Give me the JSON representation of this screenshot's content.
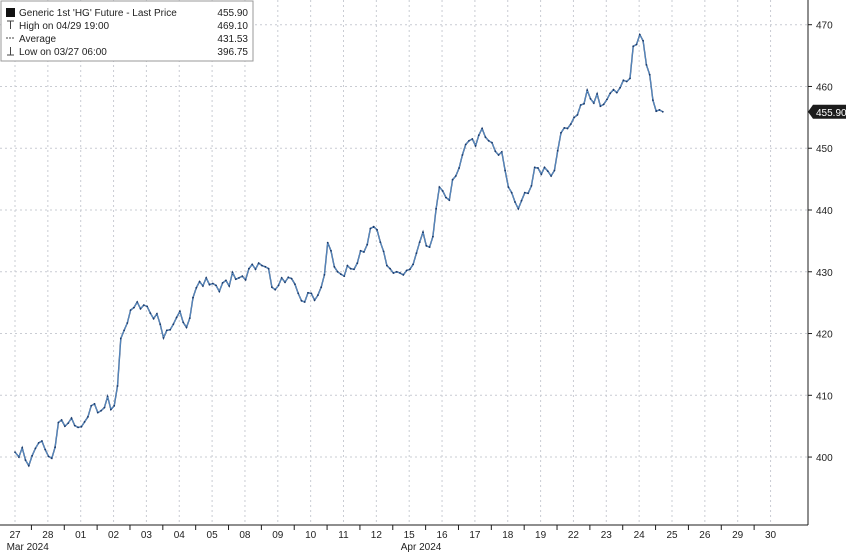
{
  "chart_data": {
    "type": "line",
    "title": "",
    "xlabel": "",
    "ylabel": "",
    "legend": {
      "placement": "top-left",
      "entries": [
        {
          "label": "Generic 1st 'HG' Future - Last Price",
          "value": "455.90",
          "icon": "filled-square-icon"
        },
        {
          "label": "High on 04/29 19:00",
          "value": "469.10",
          "icon": "high-marker-icon"
        },
        {
          "label": "Average",
          "value": "431.53",
          "icon": "average-line-icon"
        },
        {
          "label": "Low on 03/27 06:00",
          "value": "396.75",
          "icon": "low-marker-icon"
        }
      ]
    },
    "last_price_label": "455.90",
    "y_axis": {
      "side": "right",
      "ylim": [
        389,
        474
      ],
      "ticks": [
        400,
        410,
        420,
        430,
        440,
        450,
        460,
        470
      ]
    },
    "x_axis": {
      "tick_labels": [
        "27",
        "28",
        "01",
        "02",
        "03",
        "04",
        "05",
        "08",
        "09",
        "10",
        "11",
        "12",
        "15",
        "16",
        "17",
        "18",
        "19",
        "22",
        "23",
        "24",
        "25",
        "26",
        "29",
        "30"
      ],
      "period_labels": [
        {
          "label": "Mar 2024",
          "at": "27"
        },
        {
          "label": "Apr 2024",
          "at": "15"
        }
      ]
    },
    "grid": true,
    "series": [
      {
        "name": "Generic 1st 'HG' Future - Last Price",
        "color": "#1a3a6b",
        "points": [
          [
            0.0,
            400.8
          ],
          [
            0.12,
            400.0
          ],
          [
            0.22,
            401.5
          ],
          [
            0.32,
            399.5
          ],
          [
            0.42,
            398.6
          ],
          [
            0.52,
            400.2
          ],
          [
            0.62,
            401.4
          ],
          [
            0.72,
            402.3
          ],
          [
            0.82,
            402.6
          ],
          [
            0.92,
            401.2
          ],
          [
            1.02,
            400.1
          ],
          [
            1.12,
            399.8
          ],
          [
            1.22,
            401.6
          ],
          [
            1.32,
            405.6
          ],
          [
            1.42,
            406.0
          ],
          [
            1.52,
            405.0
          ],
          [
            1.62,
            405.5
          ],
          [
            1.72,
            406.3
          ],
          [
            1.82,
            405.1
          ],
          [
            1.92,
            404.8
          ],
          [
            2.02,
            404.9
          ],
          [
            2.12,
            405.7
          ],
          [
            2.22,
            406.5
          ],
          [
            2.32,
            408.3
          ],
          [
            2.42,
            408.6
          ],
          [
            2.52,
            407.2
          ],
          [
            2.62,
            407.5
          ],
          [
            2.72,
            408.0
          ],
          [
            2.82,
            409.8
          ],
          [
            2.92,
            407.7
          ],
          [
            3.02,
            408.3
          ],
          [
            3.12,
            411.5
          ],
          [
            3.22,
            419.2
          ],
          [
            3.32,
            420.5
          ],
          [
            3.42,
            421.7
          ],
          [
            3.52,
            423.8
          ],
          [
            3.62,
            424.2
          ],
          [
            3.72,
            425.1
          ],
          [
            3.82,
            424.0
          ],
          [
            3.92,
            424.6
          ],
          [
            4.02,
            424.4
          ],
          [
            4.12,
            423.3
          ],
          [
            4.22,
            422.4
          ],
          [
            4.32,
            423.2
          ],
          [
            4.42,
            421.5
          ],
          [
            4.52,
            419.3
          ],
          [
            4.62,
            420.5
          ],
          [
            4.72,
            420.6
          ],
          [
            4.82,
            421.5
          ],
          [
            4.92,
            422.6
          ],
          [
            5.02,
            423.6
          ],
          [
            5.12,
            421.8
          ],
          [
            5.22,
            421.0
          ],
          [
            5.32,
            422.5
          ],
          [
            5.42,
            425.8
          ],
          [
            5.52,
            427.4
          ],
          [
            5.62,
            428.4
          ],
          [
            5.72,
            427.7
          ],
          [
            5.82,
            429.0
          ],
          [
            5.92,
            427.9
          ],
          [
            6.02,
            428.1
          ],
          [
            6.12,
            427.8
          ],
          [
            6.22,
            426.8
          ],
          [
            6.32,
            428.2
          ],
          [
            6.42,
            428.6
          ],
          [
            6.52,
            427.7
          ],
          [
            6.62,
            429.9
          ],
          [
            6.72,
            428.8
          ],
          [
            6.82,
            429.0
          ],
          [
            6.92,
            429.3
          ],
          [
            7.02,
            428.7
          ],
          [
            7.12,
            430.5
          ],
          [
            7.22,
            431.2
          ],
          [
            7.32,
            430.4
          ],
          [
            7.42,
            431.4
          ],
          [
            7.52,
            431.0
          ],
          [
            7.62,
            430.8
          ],
          [
            7.72,
            430.5
          ],
          [
            7.82,
            427.5
          ],
          [
            7.92,
            427.1
          ],
          [
            8.02,
            427.8
          ],
          [
            8.12,
            429.0
          ],
          [
            8.22,
            428.3
          ],
          [
            8.32,
            429.1
          ],
          [
            8.42,
            428.9
          ],
          [
            8.52,
            428.0
          ],
          [
            8.62,
            426.5
          ],
          [
            8.72,
            425.3
          ],
          [
            8.82,
            425.1
          ],
          [
            8.92,
            426.6
          ],
          [
            9.02,
            426.5
          ],
          [
            9.12,
            425.4
          ],
          [
            9.22,
            426.2
          ],
          [
            9.32,
            427.5
          ],
          [
            9.42,
            429.5
          ],
          [
            9.52,
            434.7
          ],
          [
            9.62,
            433.4
          ],
          [
            9.72,
            430.8
          ],
          [
            9.82,
            430.0
          ],
          [
            9.92,
            429.6
          ],
          [
            10.02,
            429.3
          ],
          [
            10.12,
            431.0
          ],
          [
            10.22,
            430.5
          ],
          [
            10.32,
            430.4
          ],
          [
            10.42,
            431.4
          ],
          [
            10.52,
            433.4
          ],
          [
            10.62,
            433.2
          ],
          [
            10.72,
            434.4
          ],
          [
            10.82,
            437.0
          ],
          [
            10.92,
            437.3
          ],
          [
            11.02,
            436.8
          ],
          [
            11.12,
            434.8
          ],
          [
            11.22,
            433.3
          ],
          [
            11.32,
            431.0
          ],
          [
            11.42,
            430.5
          ],
          [
            11.52,
            429.8
          ],
          [
            11.62,
            430.0
          ],
          [
            11.72,
            429.8
          ],
          [
            11.82,
            429.5
          ],
          [
            11.92,
            430.2
          ],
          [
            12.02,
            430.4
          ],
          [
            12.12,
            431.2
          ],
          [
            12.22,
            433.0
          ],
          [
            12.32,
            434.8
          ],
          [
            12.42,
            436.4
          ],
          [
            12.52,
            434.2
          ],
          [
            12.62,
            434.0
          ],
          [
            12.72,
            435.7
          ],
          [
            12.82,
            440.2
          ],
          [
            12.92,
            443.7
          ],
          [
            13.02,
            443.1
          ],
          [
            13.12,
            442.0
          ],
          [
            13.22,
            441.6
          ],
          [
            13.32,
            444.9
          ],
          [
            13.42,
            445.5
          ],
          [
            13.52,
            446.8
          ],
          [
            13.62,
            448.9
          ],
          [
            13.72,
            450.6
          ],
          [
            13.82,
            451.2
          ],
          [
            13.92,
            451.5
          ],
          [
            14.02,
            450.4
          ],
          [
            14.12,
            452.1
          ],
          [
            14.22,
            453.2
          ],
          [
            14.32,
            451.8
          ],
          [
            14.42,
            451.2
          ],
          [
            14.52,
            450.9
          ],
          [
            14.62,
            449.5
          ],
          [
            14.72,
            448.9
          ],
          [
            14.82,
            449.4
          ],
          [
            14.92,
            446.4
          ],
          [
            15.02,
            443.7
          ],
          [
            15.12,
            442.8
          ],
          [
            15.22,
            441.3
          ],
          [
            15.32,
            440.2
          ],
          [
            15.42,
            441.5
          ],
          [
            15.52,
            442.8
          ],
          [
            15.62,
            442.7
          ],
          [
            15.72,
            443.9
          ],
          [
            15.82,
            446.9
          ],
          [
            15.92,
            446.8
          ],
          [
            16.02,
            445.8
          ],
          [
            16.12,
            446.9
          ],
          [
            16.22,
            446.3
          ],
          [
            16.32,
            445.5
          ],
          [
            16.42,
            446.4
          ],
          [
            16.52,
            449.6
          ],
          [
            16.62,
            452.5
          ],
          [
            16.72,
            453.3
          ],
          [
            16.82,
            453.2
          ],
          [
            16.92,
            453.9
          ],
          [
            17.02,
            455.0
          ],
          [
            17.12,
            455.4
          ],
          [
            17.22,
            457.0
          ],
          [
            17.32,
            457.2
          ],
          [
            17.42,
            459.4
          ],
          [
            17.52,
            458.0
          ],
          [
            17.62,
            457.3
          ],
          [
            17.72,
            458.8
          ],
          [
            17.82,
            456.8
          ],
          [
            17.92,
            457.1
          ],
          [
            18.02,
            457.9
          ],
          [
            18.12,
            458.9
          ],
          [
            18.22,
            459.5
          ],
          [
            18.32,
            459.0
          ],
          [
            18.42,
            459.8
          ],
          [
            18.52,
            461.0
          ],
          [
            18.62,
            460.8
          ],
          [
            18.72,
            461.3
          ],
          [
            18.82,
            466.5
          ],
          [
            18.92,
            466.8
          ],
          [
            19.02,
            468.4
          ],
          [
            19.12,
            467.4
          ],
          [
            19.22,
            463.5
          ],
          [
            19.32,
            461.9
          ],
          [
            19.42,
            457.8
          ],
          [
            19.52,
            456.0
          ],
          [
            19.62,
            456.2
          ],
          [
            19.72,
            455.9
          ]
        ]
      }
    ]
  }
}
